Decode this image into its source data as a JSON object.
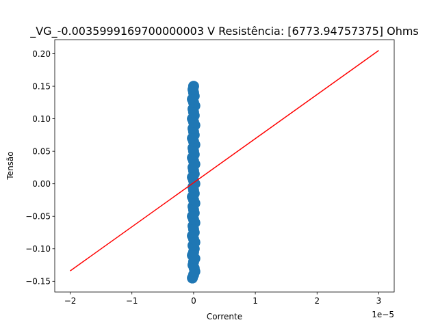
{
  "chart_data": {
    "type": "scatter",
    "title": "_VG_-0.0035999169700000003 V  Resistência: [6773.94757375] Ohms",
    "xlabel": "Corrente",
    "ylabel": "Tensão",
    "x_offset_label": "1e−5",
    "xlim": [
      -2.25,
      3.25
    ],
    "ylim": [
      -0.1665,
      0.2216
    ],
    "x_ticks": [
      -2,
      -1,
      0,
      1,
      2,
      3
    ],
    "x_tick_labels": [
      "−2",
      "−1",
      "0",
      "1",
      "2",
      "3"
    ],
    "y_ticks": [
      -0.15,
      -0.1,
      -0.05,
      0.0,
      0.05,
      0.1,
      0.15,
      0.2
    ],
    "y_tick_labels": [
      "−0.15",
      "−0.10",
      "−0.05",
      "0.00",
      "0.05",
      "0.10",
      "0.15",
      "0.20"
    ],
    "grid": false,
    "series": [
      {
        "kind": "scatter",
        "color": "#1f77b4",
        "x": [
          -0.02,
          0.0,
          0.02,
          0.01,
          -0.01,
          0.0,
          0.02,
          -0.02,
          0.0,
          0.01,
          -0.01,
          0.02,
          0.0,
          -0.02,
          0.01,
          0.0,
          -0.01,
          0.02,
          0.0,
          -0.02,
          0.01,
          0.0,
          -0.01,
          0.02,
          0.0,
          -0.02,
          0.01,
          0.0,
          -0.01,
          0.02,
          0.0,
          -0.02,
          0.01,
          0.0,
          -0.01,
          0.02,
          0.0,
          -0.02,
          0.01,
          0.0,
          -0.01,
          0.02,
          0.0,
          -0.02,
          0.01,
          0.0,
          -0.01,
          0.02,
          0.0,
          -0.02,
          0.01,
          0.0,
          -0.01,
          0.02,
          0.0,
          -0.02,
          0.01,
          0.0,
          -0.01,
          0.0
        ],
        "y": [
          -0.145,
          -0.14,
          -0.135,
          -0.13,
          -0.125,
          -0.12,
          -0.115,
          -0.11,
          -0.105,
          -0.1,
          -0.095,
          -0.09,
          -0.085,
          -0.08,
          -0.075,
          -0.07,
          -0.065,
          -0.06,
          -0.055,
          -0.05,
          -0.045,
          -0.04,
          -0.035,
          -0.03,
          -0.025,
          -0.02,
          -0.015,
          -0.01,
          -0.005,
          0.0,
          0.005,
          0.01,
          0.015,
          0.02,
          0.025,
          0.03,
          0.035,
          0.04,
          0.045,
          0.05,
          0.055,
          0.06,
          0.065,
          0.07,
          0.075,
          0.08,
          0.085,
          0.09,
          0.095,
          0.1,
          0.105,
          0.11,
          0.115,
          0.12,
          0.125,
          0.13,
          0.135,
          0.14,
          0.145,
          0.15
        ]
      },
      {
        "kind": "line",
        "color": "#ff0000",
        "x": [
          -2,
          3
        ],
        "y": [
          -0.134,
          0.205
        ]
      }
    ]
  }
}
